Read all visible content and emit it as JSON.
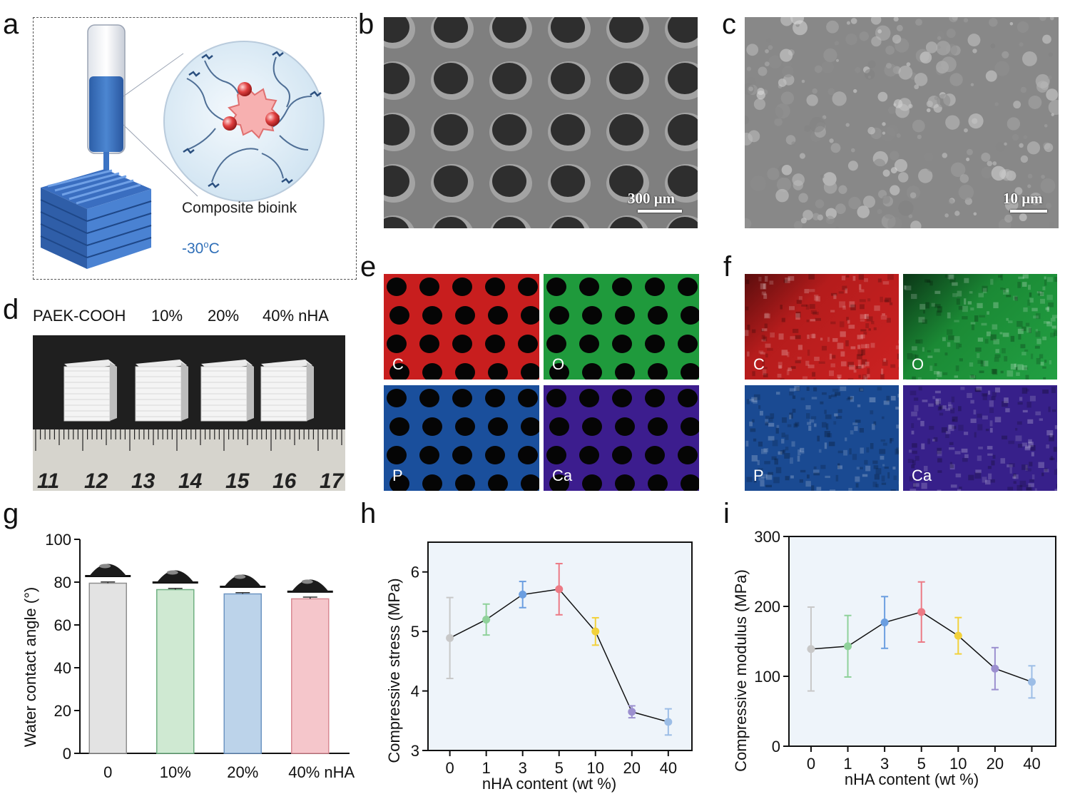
{
  "panels": {
    "a": {
      "label": "a",
      "caption": "Composite bioink",
      "temperature": "-30",
      "temp_sup": "o",
      "temp_unit": "C"
    },
    "b": {
      "label": "b",
      "scale_bar": "300 μm"
    },
    "c": {
      "label": "c",
      "scale_bar": "10 μm"
    },
    "d": {
      "label": "d",
      "sample_labels": [
        "PAEK-COOH",
        "10%",
        "20%",
        "40% nHA"
      ],
      "ruler_numbers": [
        "11",
        "12",
        "13",
        "14",
        "15",
        "16",
        "17"
      ]
    },
    "e": {
      "label": "e",
      "elements": [
        "C",
        "O",
        "P",
        "Ca"
      ]
    },
    "f": {
      "label": "f",
      "elements": [
        "C",
        "O",
        "P",
        "Ca"
      ]
    },
    "g": {
      "label": "g"
    },
    "h": {
      "label": "h"
    },
    "i": {
      "label": "i"
    }
  },
  "colors": {
    "C": "#c81e1e",
    "O": "#1f9a3c",
    "P": "#1a4f9c",
    "Ca": "#3c1d8e",
    "sem_gray": "#7d7d7d",
    "ink_blue": "#2f6fb8"
  },
  "chart_data": [
    {
      "id": "g",
      "type": "bar",
      "categories": [
        "0",
        "10%",
        "20%",
        "40% nHA"
      ],
      "values": [
        79.5,
        76.5,
        74.5,
        72.2
      ],
      "errors": [
        0.6,
        0.6,
        0.6,
        0.8
      ],
      "bar_colors": [
        "#e3e3e3",
        "#cfe9d2",
        "#bcd3ea",
        "#f5c6cb"
      ],
      "edge_colors": [
        "#8f8f8f",
        "#6fb081",
        "#6d95c2",
        "#d98a94"
      ],
      "title": "",
      "xlabel": "",
      "ylabel": "Water contact angle (°)",
      "ylim": [
        0,
        100
      ],
      "yticks": [
        0,
        20,
        40,
        60,
        80,
        100
      ]
    },
    {
      "id": "h",
      "type": "line",
      "categories": [
        "0",
        "1",
        "3",
        "5",
        "10",
        "20",
        "40"
      ],
      "values": [
        4.89,
        5.2,
        5.62,
        5.71,
        5.0,
        3.65,
        3.48
      ],
      "errors": [
        0.68,
        0.26,
        0.22,
        0.43,
        0.23,
        0.1,
        0.22
      ],
      "point_colors": [
        "#c8c8c8",
        "#8fd19a",
        "#6b9ee0",
        "#ec7a85",
        "#f2d13b",
        "#9b8fcf",
        "#9cbde6"
      ],
      "title": "",
      "xlabel": "nHA content (wt %)",
      "ylabel": "Compressive stress (MPa)",
      "ylim": [
        3,
        6.5
      ],
      "yticks": [
        3,
        4,
        5,
        6
      ]
    },
    {
      "id": "i",
      "type": "line",
      "categories": [
        "0",
        "1",
        "3",
        "5",
        "10",
        "20",
        "40"
      ],
      "values": [
        139,
        143,
        177,
        192,
        158,
        111,
        92
      ],
      "errors": [
        60,
        44,
        37,
        43,
        26,
        30,
        23
      ],
      "point_colors": [
        "#c8c8c8",
        "#8fd19a",
        "#6b9ee0",
        "#ec7a85",
        "#f2d13b",
        "#9b8fcf",
        "#9cbde6"
      ],
      "title": "",
      "xlabel": "nHA content (wt %)",
      "ylabel": "Compressive modulus (MPa)",
      "ylim": [
        0,
        300
      ],
      "yticks": [
        0,
        100,
        200,
        300
      ]
    }
  ]
}
